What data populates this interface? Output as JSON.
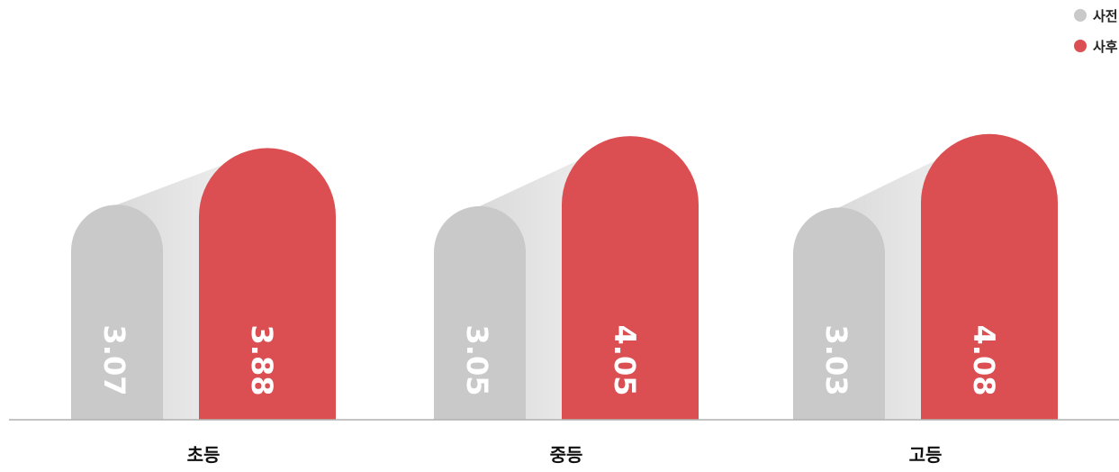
{
  "chart_data": {
    "type": "bar",
    "categories": [
      "초등",
      "중등",
      "고등"
    ],
    "series": [
      {
        "name": "사전",
        "values": [
          3.07,
          3.05,
          3.03
        ],
        "color": "#c8c9c8"
      },
      {
        "name": "사후",
        "values": [
          3.88,
          4.05,
          4.08
        ],
        "color": "#db4f52"
      }
    ],
    "ylim": [
      0,
      4.45
    ],
    "grid": false,
    "legend_position": "top-right",
    "value_labels": "inside-bar-rotated"
  },
  "colors": {
    "before": "#c8c9c8",
    "after": "#db4f52",
    "baseline": "#b0b0b0",
    "label_text": "#ffffff",
    "category_text": "#111111"
  }
}
